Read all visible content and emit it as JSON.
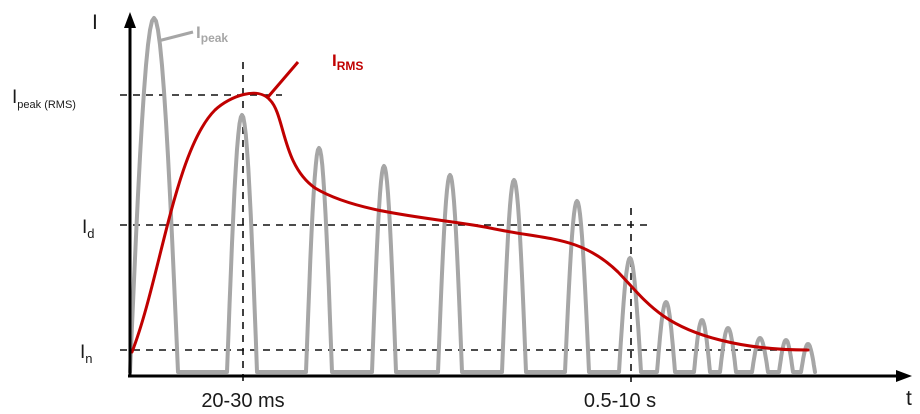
{
  "axes": {
    "y_label": "I",
    "x_label": "t"
  },
  "levels": {
    "ipeak_rms": {
      "main": "I",
      "sub": "peak (RMS)"
    },
    "id": {
      "main": "I",
      "sub": "d"
    },
    "in": {
      "main": "I",
      "sub": "n"
    }
  },
  "time_marks": {
    "t1": "20-30 ms",
    "t2": "0.5-10 s"
  },
  "curves": {
    "peak": {
      "main": "I",
      "sub": "peak",
      "color": "#a6a6a6"
    },
    "rms": {
      "main": "I",
      "sub": "RMS",
      "color": "#c00000"
    }
  }
}
